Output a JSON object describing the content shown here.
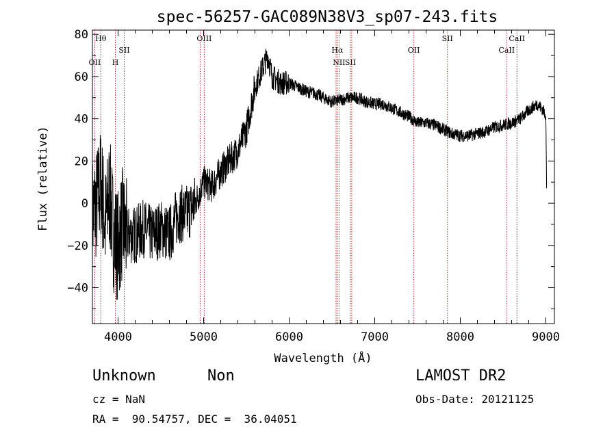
{
  "title": "spec-56257-GAC089N38V3_sp07-243.fits",
  "chart_data": {
    "type": "line",
    "title": "spec-56257-GAC089N38V3_sp07-243.fits",
    "xlabel": "Wavelength (Å)",
    "ylabel": "Flux (relative)",
    "xlim": [
      3700,
      9100
    ],
    "ylim": [
      -57,
      82
    ],
    "x_ticks": [
      4000,
      5000,
      6000,
      7000,
      8000,
      9000
    ],
    "y_ticks": [
      -40,
      -20,
      0,
      20,
      40,
      60,
      80
    ],
    "grid": false,
    "series": [
      {
        "x": [
          3700,
          3750,
          3800,
          3850,
          3900,
          3950,
          4000,
          4050,
          4100,
          4200,
          4300,
          4400,
          4500,
          4600,
          4700,
          4800,
          4900,
          5000,
          5100,
          5200,
          5300,
          5400,
          5500,
          5600,
          5700,
          5750,
          5800,
          5900,
          6000,
          6100,
          6200,
          6300,
          6400,
          6500,
          6600,
          6700,
          6800,
          6900,
          7000,
          7100,
          7200,
          7300,
          7400,
          7500,
          7600,
          7700,
          7800,
          7900,
          8000,
          8100,
          8200,
          8300,
          8400,
          8500,
          8600,
          8700,
          8800,
          8900,
          8950,
          9000,
          9010
        ],
        "y": [
          -5,
          0,
          10,
          -10,
          5,
          -15,
          -20,
          -10,
          -15,
          -15,
          -12,
          -15,
          -12,
          -15,
          -5,
          -5,
          0,
          10,
          8,
          15,
          20,
          25,
          35,
          55,
          65,
          70,
          60,
          57,
          57,
          55,
          53,
          52,
          50,
          48,
          49,
          50,
          50,
          48,
          47,
          47,
          45,
          43,
          41,
          38,
          38,
          37,
          35,
          33,
          32,
          32,
          33,
          34,
          36,
          37,
          38,
          40,
          44,
          47,
          45,
          42,
          2
        ]
      }
    ],
    "lines": [
      {
        "wl": 3727,
        "label": "OII",
        "row": 2
      },
      {
        "wl": 3798,
        "label": "Hθ",
        "row": 0
      },
      {
        "wl": 3968,
        "label": "H",
        "row": 2
      },
      {
        "wl": 4072,
        "label": "SII",
        "row": 1
      },
      {
        "wl": 4959,
        "label": "",
        "row": 1
      },
      {
        "wl": 5007,
        "label": "OIII",
        "row": 0
      },
      {
        "wl": 6548,
        "label": "",
        "row": 2
      },
      {
        "wl": 6563,
        "label": "Hα",
        "row": 1
      },
      {
        "wl": 6583,
        "label": "NII",
        "row": 2
      },
      {
        "wl": 6716,
        "label": "SII",
        "row": 2
      },
      {
        "wl": 6731,
        "label": "",
        "row": 2
      },
      {
        "wl": 7457,
        "label": "OII",
        "row": 1
      },
      {
        "wl": 7850,
        "label": "SII",
        "row": 0
      },
      {
        "wl": 8542,
        "label": "CaII",
        "row": 1
      },
      {
        "wl": 8662,
        "label": "CaII",
        "row": 0
      }
    ]
  },
  "info": {
    "class": "Unknown",
    "subclass": "Non",
    "survey": "LAMOST DR2",
    "cz": "cz = NaN",
    "obsdate": "Obs-Date: 20121125",
    "radec": "RA =  90.54757, DEC =  36.04051"
  }
}
